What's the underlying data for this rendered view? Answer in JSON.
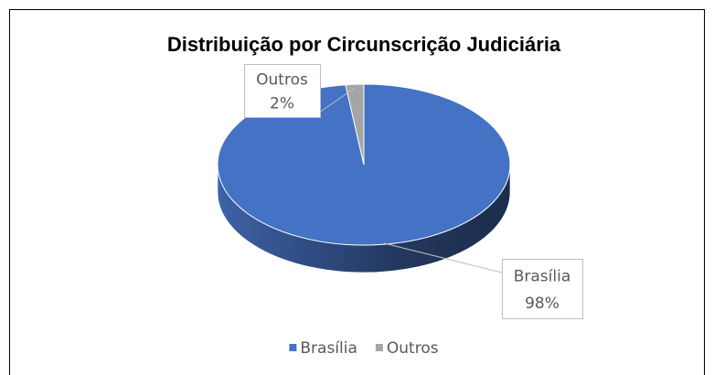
{
  "chart_data": {
    "type": "pie",
    "title": "Distribuição por Circunscrição Judiciária",
    "categories": [
      "Brasília",
      "Outros"
    ],
    "values": [
      98,
      2
    ],
    "value_labels": [
      "98%",
      "2%"
    ],
    "colors": [
      "#4472c4",
      "#a5a5a5"
    ],
    "legend": "bottom"
  }
}
